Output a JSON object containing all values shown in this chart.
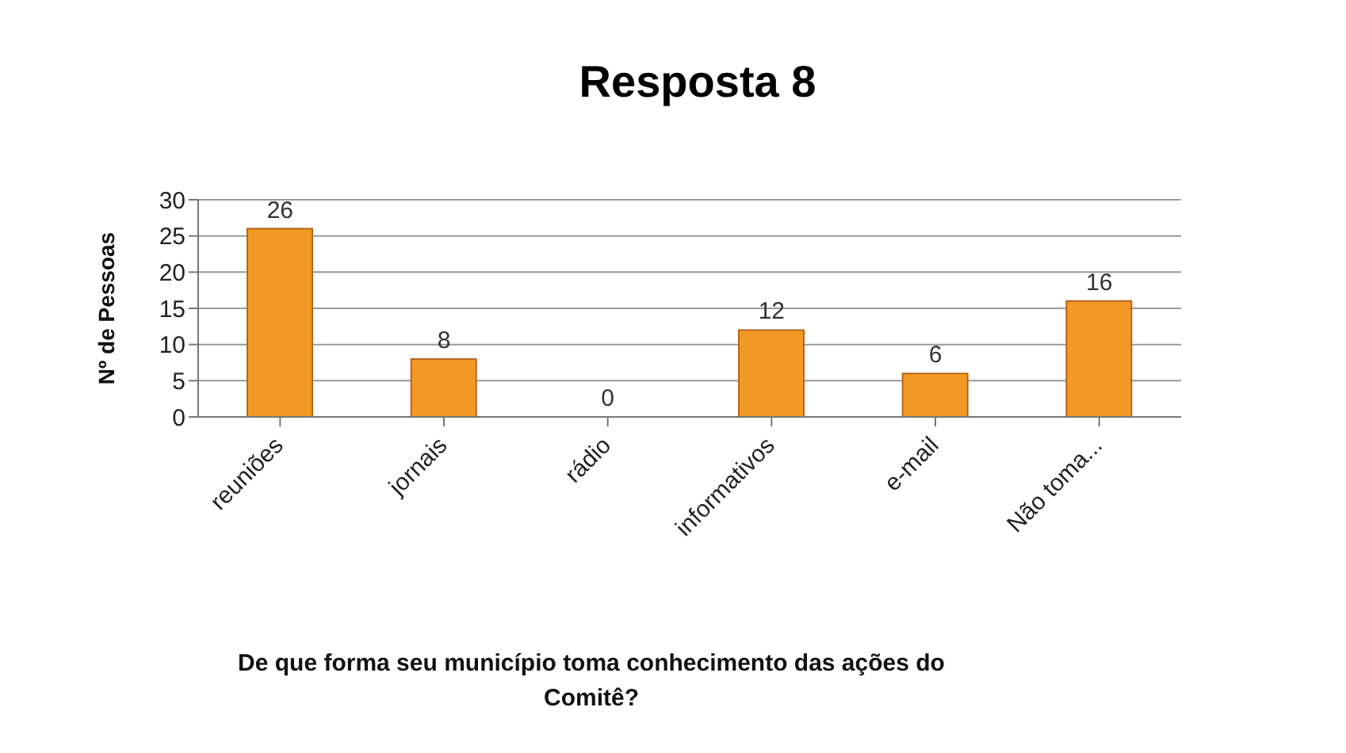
{
  "chart_data": {
    "type": "bar",
    "title": "Resposta 8",
    "ylabel": "Nº de Pessoas",
    "xlabel": "De que forma seu município toma conhecimento das ações do Comitê?",
    "categories": [
      "reuniões",
      "jornais",
      "rádio",
      "informativos",
      "e-mail",
      "Não toma..."
    ],
    "values": [
      26,
      8,
      0,
      12,
      6,
      16
    ],
    "color": "#f39a26",
    "ylim": [
      0,
      30
    ],
    "yticks": [
      0,
      5,
      10,
      15,
      20,
      25,
      30
    ],
    "grid": "y",
    "data_labels": true
  }
}
